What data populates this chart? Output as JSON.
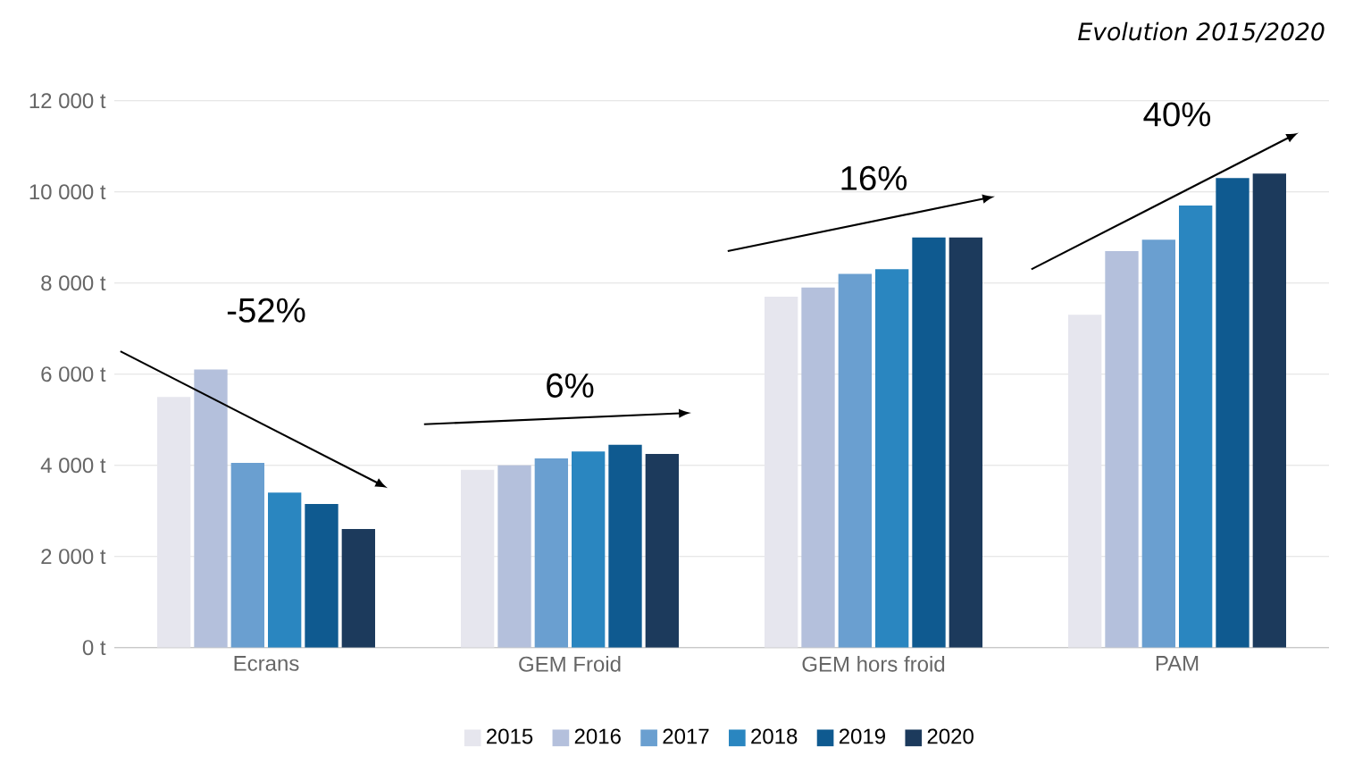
{
  "chart_data": {
    "type": "bar",
    "title": "Evolution 2015/2020",
    "categories": [
      "Ecrans",
      "GEM Froid",
      "GEM hors froid",
      "PAM"
    ],
    "series": [
      {
        "name": "2015",
        "color": "#e6e6ee",
        "values": [
          5500,
          3900,
          7700,
          7300
        ]
      },
      {
        "name": "2016",
        "color": "#b4c0dc",
        "values": [
          6100,
          4000,
          7900,
          8700
        ]
      },
      {
        "name": "2017",
        "color": "#6a9fd0",
        "values": [
          4050,
          4150,
          8200,
          8950
        ]
      },
      {
        "name": "2018",
        "color": "#2a86c0",
        "values": [
          3400,
          4300,
          8300,
          9700
        ]
      },
      {
        "name": "2019",
        "color": "#0f5a90",
        "values": [
          3150,
          4450,
          9000,
          10300
        ]
      },
      {
        "name": "2020",
        "color": "#1c3a5c",
        "values": [
          2600,
          4250,
          9000,
          10400
        ]
      }
    ],
    "ylim": [
      0,
      12000
    ],
    "yticks": [
      {
        "value": 0,
        "label": "0 t"
      },
      {
        "value": 2000,
        "label": "2 000 t"
      },
      {
        "value": 4000,
        "label": "4 000 t"
      },
      {
        "value": 6000,
        "label": "6 000 t"
      },
      {
        "value": 8000,
        "label": "8 000 t"
      },
      {
        "value": 10000,
        "label": "10 000 t"
      },
      {
        "value": 12000,
        "label": "12 000 t"
      }
    ],
    "grid": "y",
    "legend": "bottom",
    "annotations": [
      "-52%",
      "6%",
      "16%",
      "40%"
    ]
  }
}
